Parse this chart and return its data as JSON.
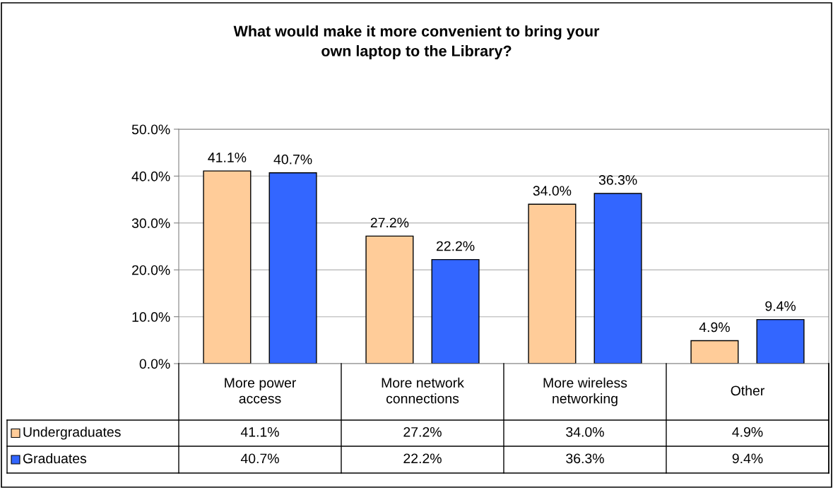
{
  "chart_data": {
    "type": "bar",
    "title": "What would make it more convenient to bring your own laptop to the Library?",
    "categories": [
      "More power access",
      "More network connections",
      "More wireless networking",
      "Other"
    ],
    "series": [
      {
        "name": "Undergraduates",
        "color": "#ffcc99",
        "values": [
          41.1,
          27.2,
          34.0,
          4.9
        ],
        "value_labels": [
          "41.1%",
          "27.2%",
          "34.0%",
          "4.9%"
        ]
      },
      {
        "name": "Graduates",
        "color": "#3366ff",
        "values": [
          40.7,
          22.2,
          36.3,
          9.4
        ],
        "value_labels": [
          "40.7%",
          "22.2%",
          "36.3%",
          "9.4%"
        ]
      }
    ],
    "ylim": [
      0,
      50
    ],
    "yticks": [
      {
        "value": 0,
        "label": "0.0%"
      },
      {
        "value": 10,
        "label": "10.0%"
      },
      {
        "value": 20,
        "label": "20.0%"
      },
      {
        "value": 30,
        "label": "30.0%"
      },
      {
        "value": 40,
        "label": "40.0%"
      },
      {
        "value": 50,
        "label": "50.0%"
      }
    ],
    "grid": "y",
    "legend": "bottom"
  }
}
